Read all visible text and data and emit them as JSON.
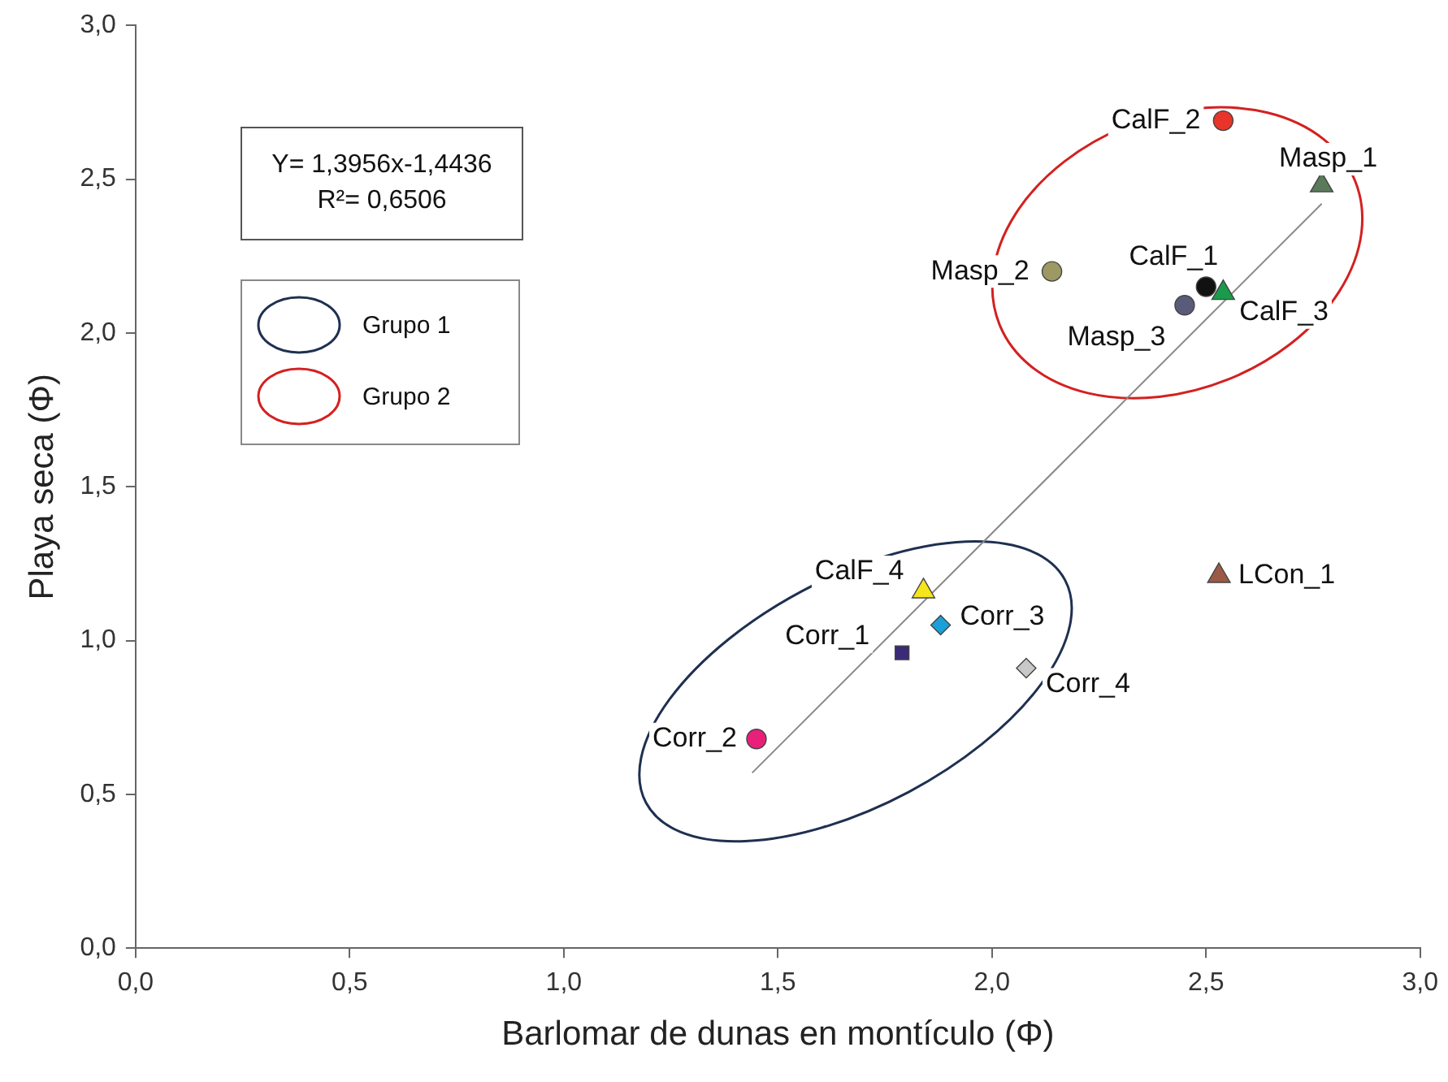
{
  "chart_data": {
    "type": "scatter",
    "xlabel": "Barlomar de dunas en montículo (Φ)",
    "ylabel": "Playa seca (Φ)",
    "xlim": [
      0,
      3
    ],
    "ylim": [
      0,
      3
    ],
    "xticks": [
      {
        "value": 0,
        "label": "0,0"
      },
      {
        "value": 0.5,
        "label": "0,5"
      },
      {
        "value": 1,
        "label": "1,0"
      },
      {
        "value": 1.5,
        "label": "1,5"
      },
      {
        "value": 2,
        "label": "2,0"
      },
      {
        "value": 2.5,
        "label": "2,5"
      },
      {
        "value": 3,
        "label": "3,0"
      }
    ],
    "yticks": [
      {
        "value": 0,
        "label": "0,0"
      },
      {
        "value": 0.5,
        "label": "0,5"
      },
      {
        "value": 1,
        "label": "1,0"
      },
      {
        "value": 1.5,
        "label": "1,5"
      },
      {
        "value": 2,
        "label": "2,0"
      },
      {
        "value": 2.5,
        "label": "2,5"
      },
      {
        "value": 3,
        "label": "3,0"
      }
    ],
    "grid": false,
    "legend": false,
    "annotations": [
      "Y= 1,3956x-1,4436",
      "R²= 0,6506",
      "Grupo 1",
      "Grupo 2"
    ],
    "series": [
      {
        "name": "CalF_2",
        "color": "#e8342a",
        "marker": "circle",
        "x": [
          2.54
        ],
        "values": [
          2.69
        ]
      },
      {
        "name": "Masp_1",
        "color": "#5a7a5a",
        "marker": "triangle",
        "x": [
          2.77
        ],
        "values": [
          2.48
        ]
      },
      {
        "name": "Masp_2",
        "color": "#9c9a62",
        "marker": "circle",
        "x": [
          2.14
        ],
        "values": [
          2.2
        ]
      },
      {
        "name": "CalF_1",
        "color": "#111111",
        "marker": "circle",
        "x": [
          2.5
        ],
        "values": [
          2.15
        ]
      },
      {
        "name": "Masp_3",
        "color": "#5a5a7a",
        "marker": "circle",
        "x": [
          2.45
        ],
        "values": [
          2.09
        ]
      },
      {
        "name": "CalF_3",
        "color": "#1a9a4a",
        "marker": "triangle",
        "x": [
          2.54
        ],
        "values": [
          2.13
        ]
      },
      {
        "name": "LCon_1",
        "color": "#9a5a45",
        "marker": "triangle",
        "x": [
          2.53
        ],
        "values": [
          1.21
        ]
      },
      {
        "name": "CalF_4",
        "color": "#f5e51a",
        "marker": "triangle",
        "x": [
          1.84
        ],
        "values": [
          1.16
        ]
      },
      {
        "name": "Corr_3",
        "color": "#1aa0d8",
        "marker": "diamond",
        "x": [
          1.88
        ],
        "values": [
          1.05
        ]
      },
      {
        "name": "Corr_1",
        "color": "#3a2a78",
        "marker": "square",
        "x": [
          1.79
        ],
        "values": [
          0.96
        ]
      },
      {
        "name": "Corr_4",
        "color": "#c8c8c8",
        "marker": "diamond",
        "x": [
          2.08
        ],
        "values": [
          0.91
        ]
      },
      {
        "name": "Corr_2",
        "color": "#e8207a",
        "marker": "circle",
        "x": [
          1.45
        ],
        "values": [
          0.68
        ]
      },
      {
        "type": "line",
        "color": "#888888",
        "marker": "none",
        "x": [
          1.44,
          2.77
        ],
        "values": [
          0.57,
          2.42
        ]
      }
    ]
  }
}
